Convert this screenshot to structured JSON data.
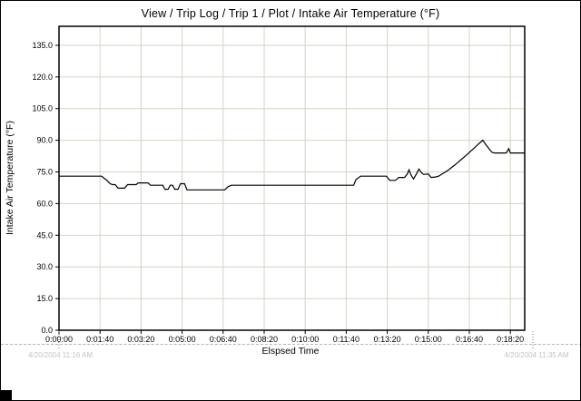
{
  "chart_data": {
    "type": "line",
    "title": "View / Trip Log / Trip 1 / Plot / Intake Air Temperature (°F)",
    "xlabel": "Elspsed Time",
    "ylabel": "Intake Air Temperature (°F)",
    "x_tick_seconds": [
      0,
      100,
      200,
      300,
      400,
      500,
      600,
      700,
      800,
      900,
      1000,
      1100
    ],
    "x_tick_labels": [
      "0:00:00",
      "0:01:40",
      "0:03:20",
      "0:05:00",
      "0:06:40",
      "0:08:20",
      "0:10:00",
      "0:11:40",
      "0:13:20",
      "0:15:00",
      "0:16:40",
      "0:18:20"
    ],
    "y_ticks": [
      0,
      15,
      30,
      45,
      60,
      75,
      90,
      105,
      120,
      135
    ],
    "y_tick_labels": [
      "0.0",
      "15.0",
      "30.0",
      "45.0",
      "60.0",
      "75.0",
      "90.0",
      "105.0",
      "120.0",
      "135.0"
    ],
    "xlim_seconds": [
      0,
      1135
    ],
    "ylim": [
      0,
      144
    ],
    "grid": true,
    "legend": "none",
    "colors": {
      "line": "#000000",
      "grid": "#d6d2c6",
      "axis": "#000000",
      "timestamp": "#c4c4c4"
    },
    "annotations": {
      "start_timestamp": "4/20/2004 11:16 AM",
      "end_timestamp": "4/20/2004 11:35 AM"
    },
    "series": [
      {
        "name": "Intake Air Temperature (°F)",
        "points": [
          [
            0,
            73
          ],
          [
            104,
            73
          ],
          [
            110,
            72
          ],
          [
            117,
            71
          ],
          [
            124,
            69.5
          ],
          [
            130,
            69
          ],
          [
            137,
            69
          ],
          [
            144,
            67.3
          ],
          [
            160,
            67.3
          ],
          [
            167,
            69
          ],
          [
            188,
            69
          ],
          [
            193,
            69.8
          ],
          [
            217,
            69.8
          ],
          [
            223,
            68.7
          ],
          [
            253,
            68.7
          ],
          [
            258,
            66.8
          ],
          [
            266,
            66.8
          ],
          [
            271,
            68.7
          ],
          [
            277,
            68.7
          ],
          [
            282,
            66.8
          ],
          [
            290,
            66.8
          ],
          [
            296,
            69.4
          ],
          [
            306,
            69.4
          ],
          [
            312,
            66.5
          ],
          [
            404,
            66.5
          ],
          [
            412,
            68
          ],
          [
            420,
            68.7
          ],
          [
            718,
            68.7
          ],
          [
            724,
            71.4
          ],
          [
            735,
            73
          ],
          [
            798,
            73
          ],
          [
            806,
            71
          ],
          [
            820,
            71
          ],
          [
            828,
            72.4
          ],
          [
            842,
            72.4
          ],
          [
            849,
            74
          ],
          [
            853,
            76
          ],
          [
            858,
            73.5
          ],
          [
            864,
            71.7
          ],
          [
            871,
            74
          ],
          [
            877,
            76.4
          ],
          [
            884,
            74.5
          ],
          [
            889,
            73.8
          ],
          [
            900,
            74
          ],
          [
            907,
            72.4
          ],
          [
            917,
            72.6
          ],
          [
            925,
            73
          ],
          [
            932,
            73.8
          ],
          [
            940,
            74.8
          ],
          [
            948,
            75.8
          ],
          [
            956,
            77
          ],
          [
            964,
            78.2
          ],
          [
            972,
            79.5
          ],
          [
            980,
            80.8
          ],
          [
            988,
            82.2
          ],
          [
            996,
            83.5
          ],
          [
            1004,
            85
          ],
          [
            1012,
            86.3
          ],
          [
            1020,
            87.8
          ],
          [
            1028,
            89.2
          ],
          [
            1033,
            90
          ],
          [
            1038,
            88.5
          ],
          [
            1044,
            87
          ],
          [
            1050,
            85.5
          ],
          [
            1056,
            84.2
          ],
          [
            1062,
            84
          ],
          [
            1090,
            84
          ],
          [
            1096,
            86
          ],
          [
            1100,
            84
          ],
          [
            1135,
            84
          ]
        ]
      }
    ]
  }
}
